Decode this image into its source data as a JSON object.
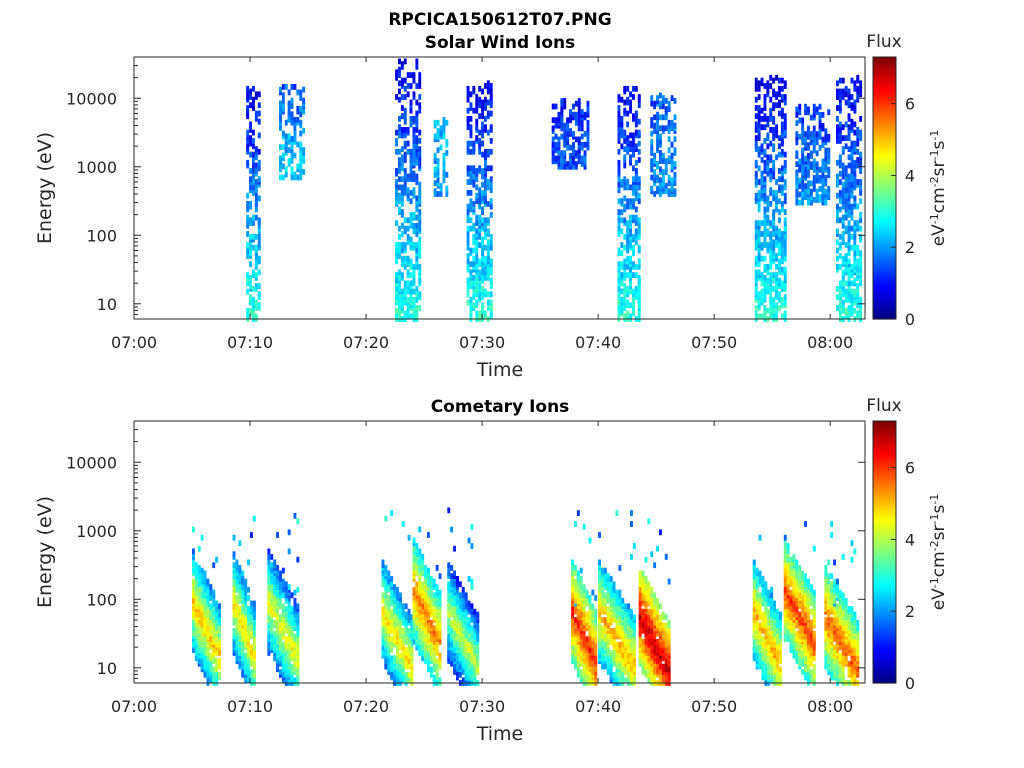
{
  "figure_title": "RPCICA150612T07.PNG",
  "colors": {
    "axis": "#262626",
    "background": "#ffffff",
    "colormap": [
      "#00007f",
      "#0000ff",
      "#007fff",
      "#00ffff",
      "#7fff7f",
      "#ffff00",
      "#ff7f00",
      "#ff0000",
      "#7f0000"
    ]
  },
  "chart_data": [
    {
      "type": "heatmap",
      "title": "Solar Wind Ions",
      "xlabel": "Time",
      "ylabel": "Energy (eV)",
      "x_ticks": [
        "07:00",
        "07:10",
        "07:20",
        "07:30",
        "07:40",
        "07:50",
        "08:00"
      ],
      "xlim_minutes_after_0700": [
        0,
        63
      ],
      "y_scale": "log",
      "y_ticks": [
        "10",
        "100",
        "1000",
        "10000"
      ],
      "ylim": [
        6,
        40000
      ],
      "colorbar": {
        "label": "Flux",
        "unit": "eV-1cm-2sr-1s-1",
        "ticks": [
          "0",
          "2",
          "4",
          "6"
        ],
        "range": [
          0,
          7.3
        ]
      },
      "grid": false,
      "bursts": [
        {
          "start": "07:09:40",
          "end": "07:10:50",
          "energy_min": 6,
          "energy_max": 15000,
          "flux_low_energy": 3.0,
          "flux_high_energy": 0.8
        },
        {
          "start": "07:12:30",
          "end": "07:14:30",
          "energy_min": 700,
          "energy_max": 15000,
          "flux_low_energy": 2.5,
          "flux_high_energy": 1.5
        },
        {
          "start": "07:22:30",
          "end": "07:24:30",
          "energy_min": 6,
          "energy_max": 35000,
          "flux_low_energy": 3.0,
          "flux_high_energy": 0.8
        },
        {
          "start": "07:25:50",
          "end": "07:27:00",
          "energy_min": 400,
          "energy_max": 5000,
          "flux_low_energy": 2.0,
          "flux_high_energy": 2.2
        },
        {
          "start": "07:28:40",
          "end": "07:30:50",
          "energy_min": 6,
          "energy_max": 18000,
          "flux_low_energy": 3.0,
          "flux_high_energy": 0.8
        },
        {
          "start": "07:36:00",
          "end": "07:39:00",
          "energy_min": 1000,
          "energy_max": 10000,
          "flux_low_energy": 1.5,
          "flux_high_energy": 1.0
        },
        {
          "start": "07:41:40",
          "end": "07:43:30",
          "energy_min": 6,
          "energy_max": 15000,
          "flux_low_energy": 3.0,
          "flux_high_energy": 0.8
        },
        {
          "start": "07:44:30",
          "end": "07:46:30",
          "energy_min": 400,
          "energy_max": 12000,
          "flux_low_energy": 2.0,
          "flux_high_energy": 1.5
        },
        {
          "start": "07:53:30",
          "end": "07:56:10",
          "energy_min": 6,
          "energy_max": 20000,
          "flux_low_energy": 3.0,
          "flux_high_energy": 0.8
        },
        {
          "start": "07:57:00",
          "end": "07:59:50",
          "energy_min": 300,
          "energy_max": 8000,
          "flux_low_energy": 2.0,
          "flux_high_energy": 1.2
        },
        {
          "start": "08:00:30",
          "end": "08:02:40",
          "energy_min": 6,
          "energy_max": 20000,
          "flux_low_energy": 3.0,
          "flux_high_energy": 0.8
        }
      ]
    },
    {
      "type": "heatmap",
      "title": "Cometary Ions",
      "xlabel": "Time",
      "ylabel": "Energy (eV)",
      "x_ticks": [
        "07:00",
        "07:10",
        "07:20",
        "07:30",
        "07:40",
        "07:50",
        "08:00"
      ],
      "xlim_minutes_after_0700": [
        0,
        63
      ],
      "y_scale": "log",
      "y_ticks": [
        "10",
        "100",
        "1000",
        "10000"
      ],
      "ylim": [
        6,
        40000
      ],
      "colorbar": {
        "label": "Flux",
        "unit": "eV-1cm-2sr-1s-1",
        "ticks": [
          "0",
          "2",
          "4",
          "6"
        ],
        "range": [
          0,
          7.3
        ]
      },
      "grid": false,
      "stripes": [
        {
          "start": "07:05:00",
          "end": "07:07:20",
          "peak_energy": 40,
          "peak_flux": 5.0
        },
        {
          "start": "07:08:30",
          "end": "07:10:20",
          "peak_energy": 40,
          "peak_flux": 4.8
        },
        {
          "start": "07:11:30",
          "end": "07:14:00",
          "peak_energy": 40,
          "peak_flux": 4.6
        },
        {
          "start": "07:21:20",
          "end": "07:23:50",
          "peak_energy": 30,
          "peak_flux": 4.8
        },
        {
          "start": "07:24:00",
          "end": "07:26:20",
          "peak_energy": 60,
          "peak_flux": 5.6
        },
        {
          "start": "07:27:00",
          "end": "07:29:30",
          "peak_energy": 30,
          "peak_flux": 4.2
        },
        {
          "start": "07:37:40",
          "end": "07:39:50",
          "peak_energy": 30,
          "peak_flux": 6.2
        },
        {
          "start": "07:40:00",
          "end": "07:43:00",
          "peak_energy": 30,
          "peak_flux": 5.2
        },
        {
          "start": "07:43:30",
          "end": "07:46:00",
          "peak_energy": 25,
          "peak_flux": 6.8
        },
        {
          "start": "07:53:20",
          "end": "07:55:40",
          "peak_energy": 30,
          "peak_flux": 5.2
        },
        {
          "start": "07:56:00",
          "end": "07:58:40",
          "peak_energy": 60,
          "peak_flux": 6.0
        },
        {
          "start": "07:59:30",
          "end": "08:02:20",
          "peak_energy": 25,
          "peak_flux": 5.8
        }
      ]
    }
  ]
}
